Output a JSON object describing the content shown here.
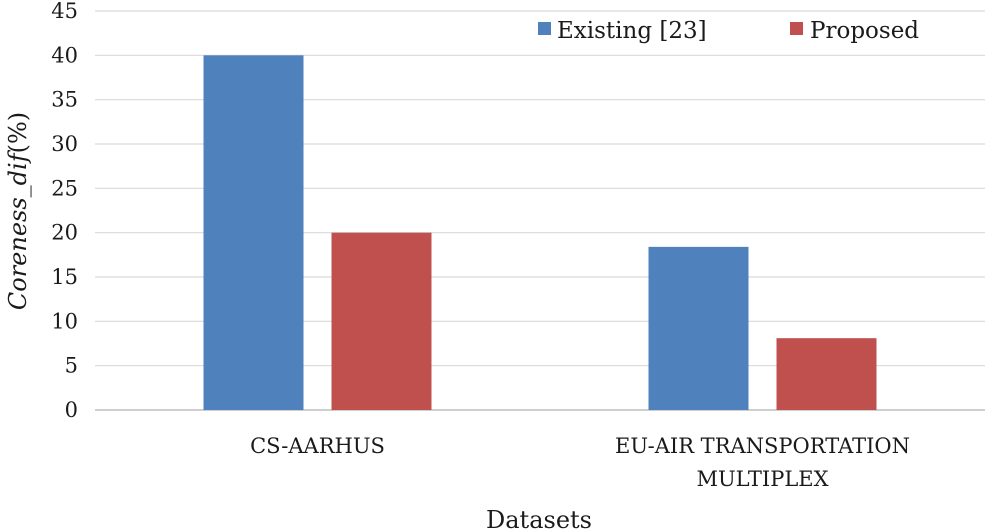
{
  "chart_data": {
    "type": "bar",
    "categories": [
      "CS-AARHUS",
      "EU-AIR TRANSPORTATION MULTIPLEX"
    ],
    "category_lines": [
      [
        "CS-AARHUS"
      ],
      [
        "EU-AIR TRANSPORTATION",
        "MULTIPLEX"
      ]
    ],
    "series": [
      {
        "name": "Existing [23]",
        "values": [
          40,
          18.4
        ],
        "color": "#4f81bd"
      },
      {
        "name": "Proposed",
        "values": [
          20,
          8.1
        ],
        "color": "#c0504d"
      }
    ],
    "title": "",
    "xlabel": "Datasets",
    "ylabel": "Coreness_dif (%)",
    "ylabel_italic_part": "Coreness_dif",
    "ylabel_unit_part": "(%)",
    "ylim": [
      0,
      45
    ],
    "yticks": [
      0,
      5,
      10,
      15,
      20,
      25,
      30,
      35,
      40,
      45
    ],
    "grid": true,
    "legend_position": "top-right"
  }
}
